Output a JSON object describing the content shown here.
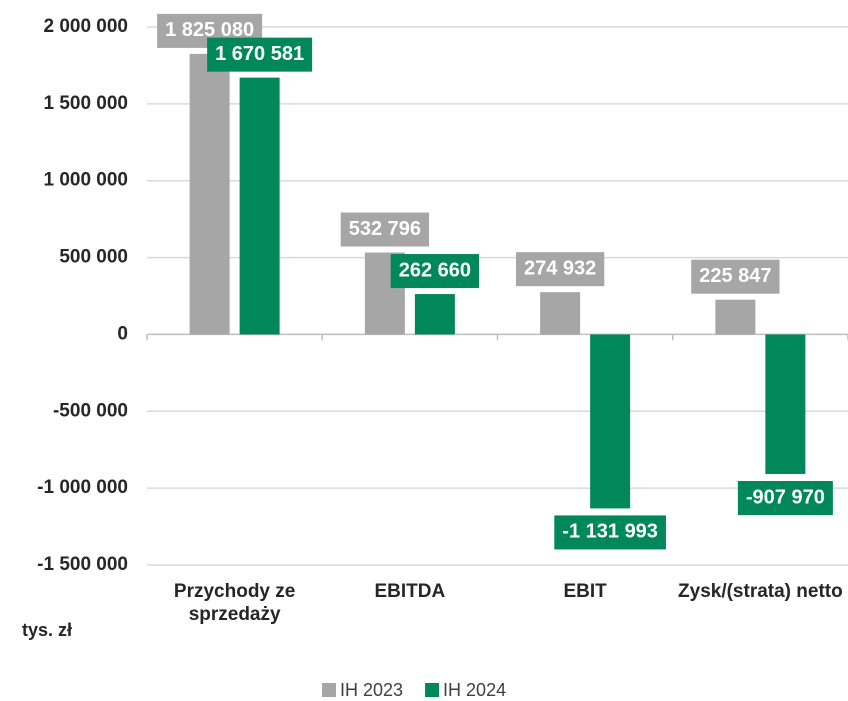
{
  "chart_data": {
    "type": "bar",
    "categories": [
      "Przychody ze sprzedaży",
      "EBITDA",
      "EBIT",
      "Zysk/(strata) netto"
    ],
    "series": [
      {
        "name": "IH 2023",
        "color": "#a6a6a6",
        "values": [
          1825080,
          532796,
          274932,
          225847
        ],
        "value_labels": [
          "1 825 080",
          "532 796",
          "274 932",
          "225 847"
        ]
      },
      {
        "name": "IH 2024",
        "color": "#00875a",
        "values": [
          1670581,
          262660,
          -1131993,
          -907970
        ],
        "value_labels": [
          "1 670 581",
          "262 660",
          "-1 131 993",
          "-907 970"
        ]
      }
    ],
    "ylim": [
      -1500000,
      2000000
    ],
    "yticks": [
      {
        "value": 2000000,
        "label": "2 000 000"
      },
      {
        "value": 1500000,
        "label": "1 500 000"
      },
      {
        "value": 1000000,
        "label": "1 000 000"
      },
      {
        "value": 500000,
        "label": "500 000"
      },
      0,
      {
        "value": -500000,
        "label": "-500 000"
      },
      {
        "value": -1000000,
        "label": "-1 000 000"
      },
      {
        "value": -1500000,
        "label": "-1 500 000"
      }
    ],
    "y_unit_label": "tys. zł",
    "grid": true,
    "legend": "bottom"
  }
}
